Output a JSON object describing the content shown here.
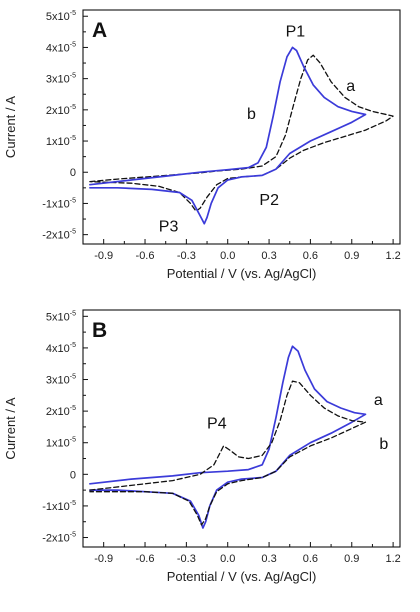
{
  "chart_data": [
    {
      "type": "line",
      "panel": "A",
      "xlabel": "Potential / V (vs. Ag/AgCl)",
      "ylabel": "Current / A",
      "xlim": [
        -1.05,
        1.25
      ],
      "ylim": [
        -2.3e-05,
        5.2e-05
      ],
      "x_ticks": [
        "-0.9",
        "-0.6",
        "-0.3",
        "0.0",
        "0.3",
        "0.6",
        "0.9",
        "1.2"
      ],
      "y_ticks": [
        {
          "value": 5e-05,
          "base": "5x10",
          "exp": "-5"
        },
        {
          "value": 4e-05,
          "base": "4x10",
          "exp": "-5"
        },
        {
          "value": 3e-05,
          "base": "3x10",
          "exp": "-5"
        },
        {
          "value": 2e-05,
          "base": "2x10",
          "exp": "-5"
        },
        {
          "value": 1e-05,
          "base": "1x10",
          "exp": "-5"
        },
        {
          "value": 0,
          "base": "0",
          "exp": ""
        },
        {
          "value": -1e-05,
          "base": "-1x10",
          "exp": "-5"
        },
        {
          "value": -2e-05,
          "base": "-2x10",
          "exp": "-5"
        }
      ],
      "grid": false,
      "series": [
        {
          "name": "a",
          "style": "dashed",
          "color": "#111111",
          "points": [
            [
              -1.0,
              -3e-06
            ],
            [
              -0.8,
              -2.2e-06
            ],
            [
              -0.5,
              -1.2e-06
            ],
            [
              -0.3,
              -5e-07
            ],
            [
              -0.2,
              -2e-07
            ],
            [
              -0.1,
              3e-07
            ],
            [
              0.1,
              1e-06
            ],
            [
              0.25,
              2e-06
            ],
            [
              0.35,
              5e-06
            ],
            [
              0.42,
              1.2e-05
            ],
            [
              0.48,
              2.2e-05
            ],
            [
              0.53,
              3e-05
            ],
            [
              0.58,
              3.6e-05
            ],
            [
              0.62,
              3.75e-05
            ],
            [
              0.67,
              3.5e-05
            ],
            [
              0.75,
              2.9e-05
            ],
            [
              0.85,
              2.4e-05
            ],
            [
              0.95,
              2.1e-05
            ],
            [
              1.05,
              1.95e-05
            ],
            [
              1.15,
              1.85e-05
            ],
            [
              1.2,
              1.8e-05
            ],
            [
              1.15,
              1.65e-05
            ],
            [
              1.0,
              1.35e-05
            ],
            [
              0.85,
              1.15e-05
            ],
            [
              0.7,
              9.5e-06
            ],
            [
              0.55,
              7e-06
            ],
            [
              0.45,
              4.5e-06
            ],
            [
              0.35,
              1e-06
            ],
            [
              0.25,
              -1e-06
            ],
            [
              0.1,
              -1.5e-06
            ],
            [
              0.0,
              -2e-06
            ],
            [
              -0.08,
              -4e-06
            ],
            [
              -0.15,
              -8e-06
            ],
            [
              -0.2,
              -1.15e-05
            ],
            [
              -0.23,
              -1.25e-05
            ],
            [
              -0.27,
              -1e-05
            ],
            [
              -0.35,
              -6.5e-06
            ],
            [
              -0.5,
              -4.5e-06
            ],
            [
              -0.7,
              -3.5e-06
            ],
            [
              -1.0,
              -3e-06
            ]
          ]
        },
        {
          "name": "b",
          "style": "solid",
          "color": "#3b3bd9",
          "points": [
            [
              -1.0,
              -4e-06
            ],
            [
              -0.7,
              -2.5e-06
            ],
            [
              -0.4,
              -1e-06
            ],
            [
              -0.2,
              0.0
            ],
            [
              0.0,
              8e-07
            ],
            [
              0.15,
              1.5e-06
            ],
            [
              0.22,
              3e-06
            ],
            [
              0.28,
              8e-06
            ],
            [
              0.33,
              1.8e-05
            ],
            [
              0.38,
              2.9e-05
            ],
            [
              0.43,
              3.7e-05
            ],
            [
              0.47,
              4e-05
            ],
            [
              0.5,
              3.9e-05
            ],
            [
              0.55,
              3.4e-05
            ],
            [
              0.62,
              2.8e-05
            ],
            [
              0.7,
              2.4e-05
            ],
            [
              0.8,
              2.1e-05
            ],
            [
              0.9,
              1.95e-05
            ],
            [
              1.0,
              1.85e-05
            ],
            [
              0.9,
              1.6e-05
            ],
            [
              0.75,
              1.3e-05
            ],
            [
              0.6,
              1e-05
            ],
            [
              0.45,
              6e-06
            ],
            [
              0.35,
              1e-06
            ],
            [
              0.25,
              -1e-06
            ],
            [
              0.1,
              -1.5e-06
            ],
            [
              0.0,
              -2.5e-06
            ],
            [
              -0.07,
              -5e-06
            ],
            [
              -0.12,
              -1e-05
            ],
            [
              -0.15,
              -1.45e-05
            ],
            [
              -0.17,
              -1.65e-05
            ],
            [
              -0.2,
              -1.4e-05
            ],
            [
              -0.26,
              -9e-06
            ],
            [
              -0.35,
              -6.5e-06
            ],
            [
              -0.55,
              -5.5e-06
            ],
            [
              -0.8,
              -5e-06
            ],
            [
              -1.0,
              -5e-06
            ]
          ]
        }
      ],
      "annotations": [
        {
          "text": "A",
          "kind": "panel"
        },
        {
          "text": "P1",
          "x": 0.42,
          "y": 4.35e-05
        },
        {
          "text": "a",
          "x": 0.86,
          "y": 2.6e-05
        },
        {
          "text": "b",
          "x": 0.14,
          "y": 1.7e-05
        },
        {
          "text": "P2",
          "x": 0.23,
          "y": -1.05e-05
        },
        {
          "text": "P3",
          "x": -0.5,
          "y": -1.9e-05
        }
      ]
    },
    {
      "type": "line",
      "panel": "B",
      "xlabel": "Potential / V (vs. Ag/AgCl)",
      "ylabel": "Current / A",
      "xlim": [
        -1.05,
        1.25
      ],
      "ylim": [
        -2.3e-05,
        5.2e-05
      ],
      "x_ticks": [
        "-0.9",
        "-0.6",
        "-0.3",
        "0.0",
        "0.3",
        "0.6",
        "0.9",
        "1.2"
      ],
      "y_ticks": [
        {
          "value": 5e-05,
          "base": "5x10",
          "exp": "-5"
        },
        {
          "value": 4e-05,
          "base": "4x10",
          "exp": "-5"
        },
        {
          "value": 3e-05,
          "base": "3x10",
          "exp": "-5"
        },
        {
          "value": 2e-05,
          "base": "2x10",
          "exp": "-5"
        },
        {
          "value": 1e-05,
          "base": "1x10",
          "exp": "-5"
        },
        {
          "value": 0,
          "base": "0",
          "exp": ""
        },
        {
          "value": -1e-05,
          "base": "-1x10",
          "exp": "-5"
        },
        {
          "value": -2e-05,
          "base": "-2x10",
          "exp": "-5"
        }
      ],
      "grid": false,
      "series": [
        {
          "name": "a",
          "style": "solid",
          "color": "#3b3bd9",
          "points": [
            [
              -1.0,
              -3e-06
            ],
            [
              -0.7,
              -1.5e-06
            ],
            [
              -0.4,
              -5e-07
            ],
            [
              -0.2,
              5e-07
            ],
            [
              0.0,
              1e-06
            ],
            [
              0.15,
              1.5e-06
            ],
            [
              0.25,
              3e-06
            ],
            [
              0.3,
              8e-06
            ],
            [
              0.35,
              1.8e-05
            ],
            [
              0.4,
              2.9e-05
            ],
            [
              0.44,
              3.7e-05
            ],
            [
              0.47,
              4.05e-05
            ],
            [
              0.51,
              3.9e-05
            ],
            [
              0.56,
              3.3e-05
            ],
            [
              0.63,
              2.7e-05
            ],
            [
              0.72,
              2.3e-05
            ],
            [
              0.82,
              2.1e-05
            ],
            [
              0.92,
              1.95e-05
            ],
            [
              1.0,
              1.9e-05
            ],
            [
              0.9,
              1.65e-05
            ],
            [
              0.75,
              1.3e-05
            ],
            [
              0.6,
              1e-05
            ],
            [
              0.45,
              6e-06
            ],
            [
              0.35,
              1e-06
            ],
            [
              0.25,
              -1e-06
            ],
            [
              0.1,
              -1.5e-06
            ],
            [
              0.0,
              -2.5e-06
            ],
            [
              -0.08,
              -5e-06
            ],
            [
              -0.13,
              -1e-05
            ],
            [
              -0.16,
              -1.5e-05
            ],
            [
              -0.18,
              -1.7e-05
            ],
            [
              -0.21,
              -1.3e-05
            ],
            [
              -0.27,
              -8.5e-06
            ],
            [
              -0.4,
              -6e-06
            ],
            [
              -0.6,
              -5.5e-06
            ],
            [
              -0.8,
              -5e-06
            ],
            [
              -1.0,
              -5e-06
            ]
          ]
        },
        {
          "name": "b",
          "style": "dashed",
          "color": "#111111",
          "points": [
            [
              -1.0,
              -5e-06
            ],
            [
              -0.7,
              -3.5e-06
            ],
            [
              -0.4,
              -2e-06
            ],
            [
              -0.2,
              0.0
            ],
            [
              -0.1,
              3e-06
            ],
            [
              -0.03,
              9e-06
            ],
            [
              0.02,
              7.5e-06
            ],
            [
              0.08,
              5.5e-06
            ],
            [
              0.15,
              5e-06
            ],
            [
              0.25,
              6e-06
            ],
            [
              0.32,
              1e-05
            ],
            [
              0.38,
              1.7e-05
            ],
            [
              0.43,
              2.5e-05
            ],
            [
              0.47,
              2.95e-05
            ],
            [
              0.52,
              2.9e-05
            ],
            [
              0.6,
              2.5e-05
            ],
            [
              0.7,
              2.1e-05
            ],
            [
              0.8,
              1.85e-05
            ],
            [
              0.9,
              1.7e-05
            ],
            [
              1.0,
              1.65e-05
            ],
            [
              0.9,
              1.45e-05
            ],
            [
              0.75,
              1.15e-05
            ],
            [
              0.6,
              9e-06
            ],
            [
              0.45,
              5.5e-06
            ],
            [
              0.35,
              1e-06
            ],
            [
              0.25,
              -1e-06
            ],
            [
              0.1,
              -2e-06
            ],
            [
              0.0,
              -3e-06
            ],
            [
              -0.08,
              -5.5e-06
            ],
            [
              -0.13,
              -1e-05
            ],
            [
              -0.16,
              -1.4e-05
            ],
            [
              -0.19,
              -1.6e-05
            ],
            [
              -0.22,
              -1.3e-05
            ],
            [
              -0.28,
              -8.5e-06
            ],
            [
              -0.4,
              -6e-06
            ],
            [
              -0.6,
              -5.5e-06
            ],
            [
              -0.8,
              -5.5e-06
            ],
            [
              -1.0,
              -5.5e-06
            ]
          ]
        }
      ],
      "annotations": [
        {
          "text": "B",
          "kind": "panel"
        },
        {
          "text": "P4",
          "x": -0.15,
          "y": 1.45e-05
        },
        {
          "text": "a",
          "x": 1.06,
          "y": 2.2e-05
        },
        {
          "text": "b",
          "x": 1.1,
          "y": 8e-06
        }
      ]
    }
  ]
}
